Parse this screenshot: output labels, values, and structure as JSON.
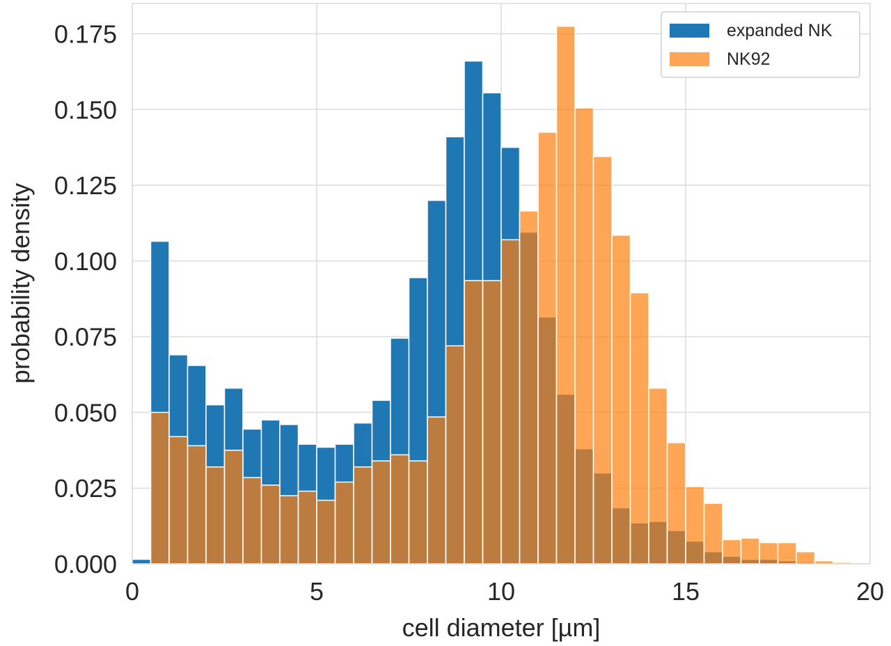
{
  "chart_data": {
    "type": "histogram",
    "title": "",
    "xlabel": "cell diameter [µm]",
    "ylabel": "probability density",
    "xlim": [
      0,
      20
    ],
    "ylim": [
      0,
      0.185
    ],
    "xticks": [
      0,
      5,
      10,
      15,
      20
    ],
    "xtick_labels": [
      "0",
      "5",
      "10",
      "15",
      "20"
    ],
    "yticks": [
      0,
      0.025,
      0.05,
      0.075,
      0.1,
      0.125,
      0.15,
      0.175
    ],
    "ytick_labels": [
      "0.000",
      "0.025",
      "0.050",
      "0.075",
      "0.100",
      "0.125",
      "0.150",
      "0.175"
    ],
    "grid": true,
    "legend_position": "top-right",
    "bin_start": 0,
    "bin_width": 0.5,
    "series": [
      {
        "name": "expanded NK",
        "color": "#1f77b4",
        "opacity": 1,
        "values": [
          0.0015,
          0.1065,
          0.069,
          0.0655,
          0.0525,
          0.058,
          0.0445,
          0.0475,
          0.046,
          0.0395,
          0.0385,
          0.0395,
          0.0465,
          0.054,
          0.0745,
          0.0945,
          0.12,
          0.141,
          0.166,
          0.1555,
          0.1375,
          0.1095,
          0.0815,
          0.056,
          0.038,
          0.03,
          0.0185,
          0.0135,
          0.014,
          0.011,
          0.0075,
          0.004,
          0.0025,
          0.0015,
          0.0015,
          0.001,
          0.0005,
          0,
          0,
          0
        ]
      },
      {
        "name": "NK92",
        "color": "#ff7f0e",
        "opacity": 0.7,
        "values": [
          0,
          0.05,
          0.042,
          0.039,
          0.032,
          0.0375,
          0.0285,
          0.026,
          0.0225,
          0.024,
          0.021,
          0.027,
          0.032,
          0.034,
          0.036,
          0.034,
          0.0485,
          0.072,
          0.0935,
          0.0935,
          0.107,
          0.1165,
          0.1425,
          0.1775,
          0.1505,
          0.1345,
          0.1085,
          0.0895,
          0.058,
          0.04,
          0.0255,
          0.02,
          0.008,
          0.0085,
          0.007,
          0.007,
          0.004,
          0.001,
          0.0005,
          0
        ]
      }
    ]
  }
}
